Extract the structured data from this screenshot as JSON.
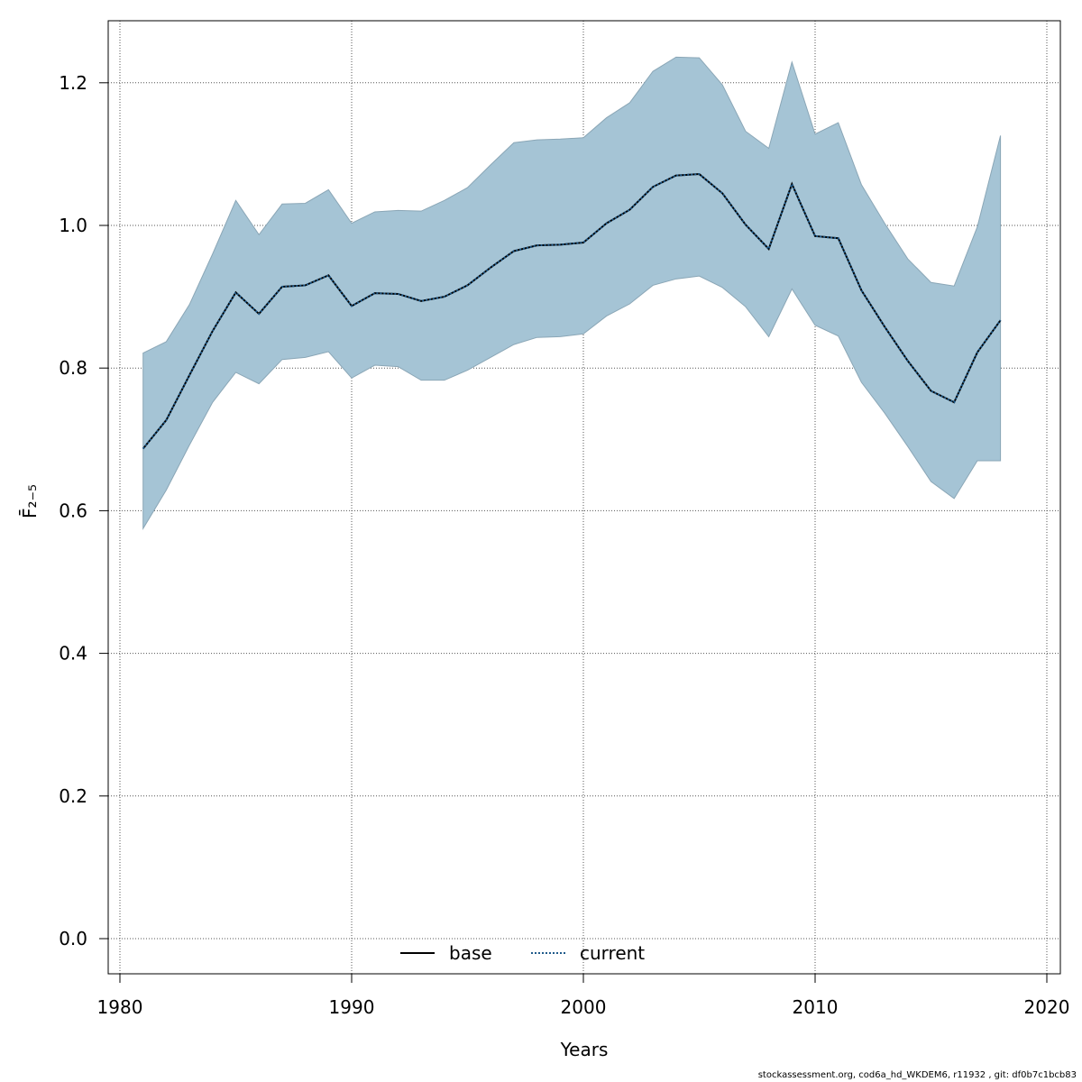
{
  "chart_data": {
    "type": "area",
    "xlabel": "Years",
    "ylabel": "F̄₂₋₅",
    "xlim": [
      1980,
      2020
    ],
    "ylim": [
      0.0,
      1.25
    ],
    "xticks": [
      1980,
      1990,
      2000,
      2010,
      2020
    ],
    "yticks": [
      0.0,
      0.2,
      0.4,
      0.6,
      0.8,
      1.0,
      1.2
    ],
    "x_tick_labels": [
      "1980",
      "1990",
      "2000",
      "2010",
      "2020"
    ],
    "y_tick_labels": [
      "0.0",
      "0.2",
      "0.4",
      "0.6",
      "0.8",
      "1.0",
      "1.2"
    ],
    "grid": true,
    "legend_position": "bottom-center",
    "x": [
      1981,
      1982,
      1983,
      1984,
      1985,
      1986,
      1987,
      1988,
      1989,
      1990,
      1991,
      1992,
      1993,
      1994,
      1995,
      1996,
      1997,
      1998,
      1999,
      2000,
      2001,
      2002,
      2003,
      2004,
      2005,
      2006,
      2007,
      2008,
      2009,
      2010,
      2011,
      2012,
      2013,
      2014,
      2015,
      2016,
      2017,
      2018
    ],
    "series": [
      {
        "name": "base",
        "style": "solid",
        "color": "#000000",
        "values": [
          0.687,
          0.727,
          0.79,
          0.852,
          0.906,
          0.876,
          0.914,
          0.916,
          0.93,
          0.887,
          0.905,
          0.904,
          0.894,
          0.9,
          0.916,
          0.941,
          0.964,
          0.972,
          0.973,
          0.976,
          1.003,
          1.022,
          1.054,
          1.07,
          1.072,
          1.045,
          1.001,
          0.967,
          1.058,
          0.985,
          0.982,
          0.909,
          0.858,
          0.81,
          0.768,
          0.752,
          0.822,
          0.867
        ]
      },
      {
        "name": "current",
        "style": "dotted",
        "color": "#1f5a8a",
        "values": [
          0.687,
          0.727,
          0.79,
          0.852,
          0.906,
          0.876,
          0.914,
          0.916,
          0.93,
          0.887,
          0.905,
          0.904,
          0.894,
          0.9,
          0.916,
          0.941,
          0.964,
          0.972,
          0.973,
          0.976,
          1.003,
          1.022,
          1.054,
          1.07,
          1.072,
          1.045,
          1.001,
          0.967,
          1.058,
          0.985,
          0.982,
          0.909,
          0.858,
          0.81,
          0.768,
          0.752,
          0.822,
          0.867
        ]
      }
    ],
    "confidence_band": {
      "color": "#a5c4d5",
      "lower": [
        0.575,
        0.629,
        0.692,
        0.752,
        0.794,
        0.778,
        0.812,
        0.815,
        0.823,
        0.786,
        0.804,
        0.802,
        0.783,
        0.783,
        0.797,
        0.815,
        0.833,
        0.843,
        0.844,
        0.848,
        0.873,
        0.89,
        0.916,
        0.925,
        0.929,
        0.913,
        0.886,
        0.844,
        0.911,
        0.86,
        0.845,
        0.78,
        0.737,
        0.69,
        0.641,
        0.617,
        0.67,
        0.67
      ],
      "upper": [
        0.821,
        0.837,
        0.889,
        0.96,
        1.035,
        0.987,
        1.03,
        1.031,
        1.05,
        1.003,
        1.019,
        1.021,
        1.02,
        1.035,
        1.053,
        1.085,
        1.116,
        1.12,
        1.121,
        1.123,
        1.151,
        1.172,
        1.216,
        1.236,
        1.235,
        1.197,
        1.132,
        1.108,
        1.229,
        1.128,
        1.144,
        1.057,
        1.003,
        0.953,
        0.92,
        0.915,
        0.998,
        1.126
      ]
    }
  },
  "footer": {
    "text": "stockassessment.org, cod6a_hd_WKDEM6, r11932 , git: df0b7c1bcb83"
  }
}
